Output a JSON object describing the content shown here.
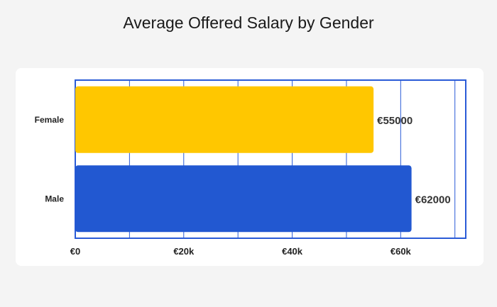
{
  "chart_data": {
    "type": "bar",
    "orientation": "horizontal",
    "title": "Average Offered Salary by Gender",
    "xlabel": "",
    "ylabel": "",
    "categories": [
      "Female",
      "Male"
    ],
    "values": [
      55000,
      62000
    ],
    "value_labels": [
      "€55000",
      "€62000"
    ],
    "colors": [
      "#ffc700",
      "#2258d1"
    ],
    "axis_color": "#2a5bd7",
    "xlim": [
      0,
      72000
    ],
    "xticks": [
      0,
      20000,
      40000,
      60000
    ],
    "xtick_labels": [
      "€0",
      "€20k",
      "€40k",
      "€60k"
    ],
    "grid": true,
    "legend": "none"
  }
}
